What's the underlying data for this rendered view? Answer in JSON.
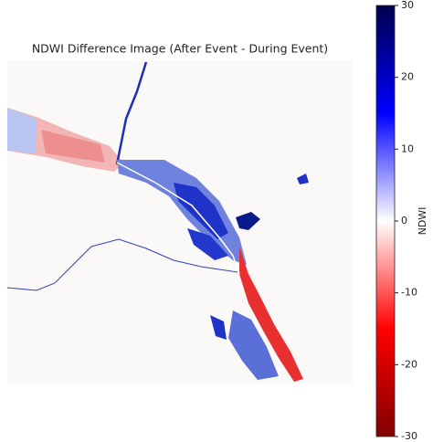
{
  "chart_data": {
    "type": "image",
    "title": "NDWI Difference Image (After Event - During Event)",
    "colorbar_label": "NDWI",
    "clim": [
      -30,
      30
    ],
    "cticks": [
      -30,
      -20,
      -10,
      0,
      10,
      20,
      30
    ],
    "colormap": [
      "#800000",
      "#ff0000",
      "#ffffff",
      "#0000ff",
      "#00004d"
    ]
  }
}
